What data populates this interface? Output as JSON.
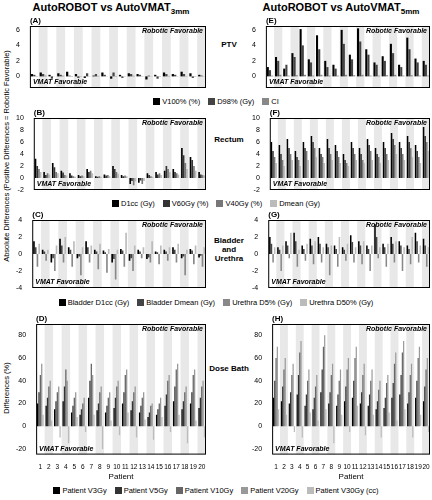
{
  "figure": {
    "column_titles": [
      {
        "main": "AutoROBOT vs AutoVMAT",
        "subscript": "3mm"
      },
      {
        "main": "AutoROBOT vs AutoVMAT",
        "subscript": "5mm"
      }
    ],
    "row_labels": [
      "PTV",
      "Rectum",
      "Bladder and Urethra",
      "Dose Bath"
    ],
    "y_labels": [
      "Absolute Differences (Positive Differences = Robotic Favorable)",
      "Differences (%)"
    ]
  },
  "chart_data": [
    {
      "type": "bar",
      "title": "(A)",
      "annotations": [
        "Robotic Favorable",
        "VMAT Favorable"
      ],
      "categories": [
        1,
        2,
        3,
        4,
        5,
        6,
        7,
        8,
        9,
        10,
        11,
        12,
        13,
        14,
        15,
        16,
        17,
        18,
        19,
        20
      ],
      "ylim": [
        -1.5,
        6.5
      ],
      "yticks": [
        0,
        2,
        4,
        6
      ],
      "grid": false,
      "tick_labels": "y",
      "series": [
        {
          "name": "V100% (%)",
          "color": "#000000",
          "values": [
            0.3,
            0.5,
            0.2,
            0.4,
            0.6,
            0.3,
            -0.2,
            0.1,
            0.5,
            -0.3,
            0.2,
            0.4,
            0.3,
            -0.4,
            0.2,
            0.5,
            0.3,
            0.6,
            0.4,
            0.2
          ]
        },
        {
          "name": "D98% (Gy)",
          "color": "#444444",
          "values": [
            0.2,
            0.3,
            -0.3,
            0.2,
            0.1,
            -0.2,
            0.4,
            0.3,
            0.2,
            0.5,
            -0.2,
            0.3,
            0.2,
            0.1,
            -0.3,
            0.3,
            0.2,
            0.3,
            -0.2,
            0.1
          ]
        },
        {
          "name": "CI",
          "color": "#888888",
          "values": [
            0.05,
            0.1,
            0.02,
            0.08,
            -0.05,
            0.04,
            0.03,
            0.06,
            0.02,
            0.05,
            0.03,
            0.07,
            0.04,
            0.02,
            0.05,
            0.06,
            0.03,
            0.04,
            0.05,
            0.02
          ]
        }
      ]
    },
    {
      "type": "bar",
      "title": "(B)",
      "annotations": [
        "Robotic Favorable",
        "VMAT Favorable"
      ],
      "categories": [
        1,
        2,
        3,
        4,
        5,
        6,
        7,
        8,
        9,
        10,
        11,
        12,
        13,
        14,
        15,
        16,
        17,
        18,
        19,
        20
      ],
      "ylim": [
        -2,
        10
      ],
      "yticks": [
        -2,
        0,
        2,
        4,
        6,
        8,
        10
      ],
      "grid": false,
      "tick_labels": "y",
      "series": [
        {
          "name": "D1cc (Gy)",
          "color": "#000000",
          "values": [
            3.2,
            1.0,
            2.5,
            1.2,
            0.8,
            0.5,
            1.5,
            0.3,
            0.6,
            2.0,
            0.5,
            -1.0,
            -0.8,
            0.8,
            1.0,
            1.2,
            1.5,
            5.0,
            3.5,
            1.0
          ]
        },
        {
          "name": "V60Gy (%)",
          "color": "#333333",
          "values": [
            2.0,
            0.5,
            1.8,
            0.9,
            0.4,
            0.3,
            1.0,
            0.2,
            0.4,
            1.5,
            0.3,
            -0.5,
            -0.4,
            0.5,
            0.6,
            2.0,
            1.0,
            3.8,
            3.0,
            0.6
          ]
        },
        {
          "name": "V40Gy (%)",
          "color": "#777777",
          "values": [
            1.5,
            0.8,
            1.0,
            0.5,
            0.3,
            0.4,
            1.2,
            0.3,
            0.5,
            1.0,
            0.4,
            -1.2,
            -1.0,
            0.3,
            0.8,
            1.5,
            0.8,
            2.5,
            2.0,
            0.5
          ]
        },
        {
          "name": "Dmean (Gy)",
          "color": "#bbbbbb",
          "values": [
            1.0,
            0.6,
            0.8,
            0.4,
            0.2,
            0.3,
            0.8,
            0.2,
            0.3,
            0.7,
            0.3,
            -0.6,
            -0.5,
            0.2,
            0.5,
            1.0,
            0.6,
            1.5,
            1.2,
            0.4
          ]
        }
      ]
    },
    {
      "type": "bar",
      "title": "(C)",
      "annotations": [
        "Robotic Favorable",
        "VMAT Favorable"
      ],
      "categories": [
        1,
        2,
        3,
        4,
        5,
        6,
        7,
        8,
        9,
        10,
        11,
        12,
        13,
        14,
        15,
        16,
        17,
        18,
        19,
        20
      ],
      "ylim": [
        -4,
        4
      ],
      "yticks": [
        -4,
        -2,
        0,
        2,
        4
      ],
      "grid": false,
      "tick_labels": "y",
      "series": [
        {
          "name": "Bladder D1cc (Gy)",
          "color": "#000000",
          "values": [
            1.5,
            0.5,
            -1.0,
            1.8,
            0.8,
            -0.5,
            1.5,
            0.5,
            0.4,
            -1.0,
            0.6,
            -0.8,
            0.5,
            -0.6,
            0.3,
            0.5,
            0.8,
            -0.5,
            0.6,
            -0.4
          ]
        },
        {
          "name": "Bladder Dmean (Gy)",
          "color": "#444444",
          "values": [
            0.8,
            0.3,
            -0.5,
            1.0,
            0.5,
            -0.3,
            0.8,
            0.3,
            0.2,
            -0.6,
            0.4,
            -0.5,
            0.3,
            -0.4,
            0.2,
            0.3,
            0.5,
            -0.3,
            0.4,
            -0.2
          ]
        },
        {
          "name": "Urethra D5% (Gy)",
          "color": "#888888",
          "values": [
            -1.5,
            -0.8,
            -2.0,
            -1.0,
            -1.5,
            -2.5,
            -1.0,
            -1.8,
            -2.2,
            -3.0,
            -1.5,
            -2.0,
            -0.5,
            -1.0,
            -1.2,
            -0.8,
            -1.0,
            -2.5,
            -1.2,
            -1.5
          ]
        },
        {
          "name": "Urethra D50% (Gy)",
          "color": "#bbbbbb",
          "values": [
            1.2,
            0.5,
            1.0,
            2.0,
            1.5,
            0.8,
            1.0,
            1.2,
            0.6,
            0.5,
            2.5,
            1.0,
            0.8,
            1.5,
            1.0,
            0.8,
            1.2,
            0.5,
            1.0,
            0.8
          ]
        }
      ]
    },
    {
      "type": "bar",
      "title": "(D)",
      "annotations": [
        "Robotic Favorable",
        "VMAT Favorable"
      ],
      "categories": [
        1,
        2,
        3,
        4,
        5,
        6,
        7,
        8,
        9,
        10,
        11,
        12,
        13,
        14,
        15,
        16,
        17,
        18,
        19,
        20
      ],
      "x_label": "Patient",
      "ylim": [
        -25,
        90
      ],
      "yticks": [
        -20,
        0,
        20,
        40,
        60,
        80
      ],
      "grid": false,
      "series": [
        {
          "name": "Patient V3Gy",
          "color": "#000000",
          "values": [
            20,
            18,
            15,
            22,
            12,
            10,
            25,
            14,
            12,
            16,
            20,
            14,
            12,
            8,
            10,
            18,
            22,
            15,
            20,
            16
          ]
        },
        {
          "name": "Patient V5Gy",
          "color": "#333333",
          "values": [
            30,
            25,
            22,
            35,
            18,
            15,
            40,
            20,
            18,
            25,
            30,
            22,
            18,
            12,
            15,
            28,
            35,
            22,
            30,
            25
          ]
        },
        {
          "name": "Patient V10Gy",
          "color": "#666666",
          "values": [
            45,
            35,
            30,
            50,
            25,
            20,
            55,
            30,
            25,
            35,
            45,
            30,
            25,
            18,
            20,
            40,
            50,
            30,
            45,
            35
          ]
        },
        {
          "name": "Patient V20Gy",
          "color": "#999999",
          "values": [
            55,
            40,
            35,
            40,
            30,
            25,
            45,
            35,
            30,
            40,
            50,
            35,
            30,
            20,
            25,
            45,
            55,
            35,
            50,
            40
          ]
        },
        {
          "name": "Patient V30Gy (cc)",
          "color": "#bbbbbb",
          "values": [
            10,
            5,
            -10,
            -15,
            8,
            -5,
            10,
            -20,
            5,
            -8,
            12,
            -10,
            6,
            -12,
            8,
            -5,
            10,
            -15,
            5,
            -10
          ]
        }
      ]
    },
    {
      "type": "bar",
      "title": "(E)",
      "annotations": [
        "Robotic Favorable",
        "VMAT Favorable"
      ],
      "categories": [
        1,
        2,
        3,
        4,
        5,
        6,
        7,
        8,
        9,
        10,
        11,
        12,
        13,
        14,
        15,
        16,
        17,
        18,
        19,
        20
      ],
      "ylim": [
        -1.5,
        6.5
      ],
      "yticks": [
        0,
        2,
        4,
        6
      ],
      "grid": false,
      "tick_labels": "y",
      "series": [
        {
          "name": "V100% (%)",
          "color": "#000000",
          "values": [
            1.2,
            2.5,
            1.0,
            3.0,
            6.1,
            2.2,
            5.3,
            2.0,
            1.5,
            6.0,
            2.8,
            6.2,
            3.5,
            1.8,
            2.6,
            4.2,
            1.5,
            5.0,
            2.3,
            2.0
          ]
        },
        {
          "name": "D98% (Gy)",
          "color": "#444444",
          "values": [
            0.8,
            2.0,
            1.5,
            2.5,
            4.0,
            1.8,
            3.5,
            1.2,
            1.0,
            4.2,
            2.2,
            4.5,
            2.8,
            1.5,
            2.0,
            3.0,
            1.2,
            3.5,
            1.8,
            1.5
          ]
        },
        {
          "name": "CI",
          "color": "#888888",
          "values": [
            0.1,
            0.2,
            0.1,
            0.15,
            0.2,
            0.1,
            0.2,
            0.1,
            0.1,
            0.2,
            0.15,
            0.2,
            0.1,
            0.1,
            0.15,
            0.2,
            0.1,
            0.15,
            0.1,
            0.1
          ]
        }
      ]
    },
    {
      "type": "bar",
      "title": "(F)",
      "annotations": [
        "Robotic Favorable",
        "VMAT Favorable"
      ],
      "categories": [
        1,
        2,
        3,
        4,
        5,
        6,
        7,
        8,
        9,
        10,
        11,
        12,
        13,
        14,
        15,
        16,
        17,
        18,
        19,
        20
      ],
      "ylim": [
        -2,
        10
      ],
      "yticks": [
        -2,
        0,
        2,
        4,
        6,
        8,
        10
      ],
      "grid": false,
      "tick_labels": "y",
      "series": [
        {
          "name": "D1cc (Gy)",
          "color": "#000000",
          "values": [
            6.0,
            5.5,
            6.5,
            4.5,
            6.0,
            7.0,
            5.0,
            6.5,
            5.5,
            4.0,
            6.0,
            5.0,
            6.5,
            5.0,
            6.0,
            7.5,
            6.0,
            7.0,
            5.5,
            8.5
          ]
        },
        {
          "name": "V60Gy (%)",
          "color": "#333333",
          "values": [
            4.5,
            4.0,
            5.0,
            3.5,
            5.0,
            6.0,
            4.0,
            5.0,
            4.5,
            3.0,
            5.0,
            4.0,
            5.5,
            4.0,
            5.0,
            6.5,
            5.0,
            6.0,
            4.5,
            7.0
          ]
        },
        {
          "name": "V40Gy (%)",
          "color": "#777777",
          "values": [
            3.5,
            3.0,
            4.0,
            3.0,
            4.5,
            5.0,
            3.5,
            4.0,
            3.5,
            2.5,
            4.0,
            3.0,
            4.5,
            3.5,
            4.0,
            5.5,
            4.0,
            5.0,
            3.5,
            6.0
          ]
        },
        {
          "name": "Dmean (Gy)",
          "color": "#bbbbbb",
          "values": [
            2.5,
            2.0,
            3.0,
            2.0,
            3.0,
            3.5,
            2.5,
            3.0,
            2.5,
            2.0,
            3.0,
            2.5,
            3.0,
            2.5,
            3.0,
            4.0,
            3.0,
            3.5,
            2.5,
            4.5
          ]
        }
      ]
    },
    {
      "type": "bar",
      "title": "(G)",
      "annotations": [
        "Robotic Favorable",
        "VMAT Favorable"
      ],
      "categories": [
        1,
        2,
        3,
        4,
        5,
        6,
        7,
        8,
        9,
        10,
        11,
        12,
        13,
        14,
        15,
        16,
        17,
        18,
        19,
        20
      ],
      "ylim": [
        -4,
        4
      ],
      "yticks": [
        -4,
        -2,
        0,
        2,
        4
      ],
      "grid": false,
      "tick_labels": "y",
      "series": [
        {
          "name": "Bladder D1cc (Gy)",
          "color": "#000000",
          "values": [
            2.0,
            0.8,
            1.5,
            2.5,
            1.0,
            1.8,
            2.0,
            1.2,
            1.0,
            0.8,
            2.2,
            1.5,
            1.0,
            3.5,
            1.2,
            2.0,
            1.5,
            1.0,
            2.5,
            1.8
          ]
        },
        {
          "name": "Bladder Dmean (Gy)",
          "color": "#444444",
          "values": [
            1.2,
            0.5,
            1.0,
            1.5,
            0.6,
            1.0,
            1.2,
            0.8,
            0.6,
            0.5,
            1.4,
            1.0,
            0.6,
            2.0,
            0.8,
            1.2,
            1.0,
            0.6,
            1.5,
            1.0
          ]
        },
        {
          "name": "Urethra D5% (Gy)",
          "color": "#888888",
          "values": [
            -1.0,
            -2.0,
            -0.5,
            -1.5,
            -0.8,
            -1.2,
            -1.0,
            -2.5,
            -1.5,
            -0.8,
            -1.0,
            -1.2,
            -2.0,
            -0.5,
            -1.5,
            -1.0,
            -2.0,
            -1.2,
            -1.0,
            -1.5
          ]
        },
        {
          "name": "Urethra D50% (Gy)",
          "color": "#bbbbbb",
          "values": [
            0.8,
            1.0,
            2.5,
            0.5,
            1.2,
            1.5,
            0.8,
            1.0,
            2.0,
            1.2,
            0.8,
            1.5,
            1.0,
            0.8,
            1.2,
            1.5,
            0.8,
            2.0,
            1.0,
            0.8
          ]
        }
      ]
    },
    {
      "type": "bar",
      "title": "(H)",
      "annotations": [
        "Robotic Favorable",
        "VMAT Favorable"
      ],
      "categories": [
        1,
        2,
        3,
        4,
        5,
        6,
        7,
        8,
        9,
        10,
        11,
        12,
        13,
        14,
        15,
        16,
        17,
        18,
        19,
        20
      ],
      "x_label": "Patient",
      "ylim": [
        -25,
        90
      ],
      "yticks": [
        -20,
        0,
        20,
        40,
        60,
        80
      ],
      "grid": false,
      "series": [
        {
          "name": "Patient V3Gy",
          "color": "#000000",
          "values": [
            25,
            22,
            20,
            28,
            18,
            15,
            30,
            20,
            18,
            22,
            25,
            20,
            18,
            15,
            16,
            25,
            28,
            20,
            25,
            22
          ]
        },
        {
          "name": "Patient V5Gy",
          "color": "#333333",
          "values": [
            40,
            35,
            30,
            45,
            28,
            25,
            50,
            30,
            28,
            35,
            40,
            30,
            28,
            22,
            25,
            38,
            45,
            30,
            40,
            35
          ]
        },
        {
          "name": "Patient V10Gy",
          "color": "#666666",
          "values": [
            60,
            50,
            45,
            65,
            40,
            35,
            70,
            45,
            40,
            50,
            60,
            45,
            40,
            32,
            38,
            55,
            65,
            45,
            60,
            50
          ]
        },
        {
          "name": "Patient V20Gy",
          "color": "#999999",
          "values": [
            70,
            60,
            55,
            75,
            50,
            45,
            80,
            55,
            50,
            60,
            70,
            55,
            50,
            40,
            45,
            65,
            75,
            55,
            70,
            60
          ]
        },
        {
          "name": "Patient V30Gy (cc)",
          "color": "#bbbbbb",
          "values": [
            15,
            10,
            -5,
            -10,
            12,
            5,
            15,
            -15,
            10,
            -5,
            18,
            -8,
            10,
            -10,
            12,
            5,
            15,
            -10,
            10,
            -5
          ]
        }
      ]
    }
  ]
}
